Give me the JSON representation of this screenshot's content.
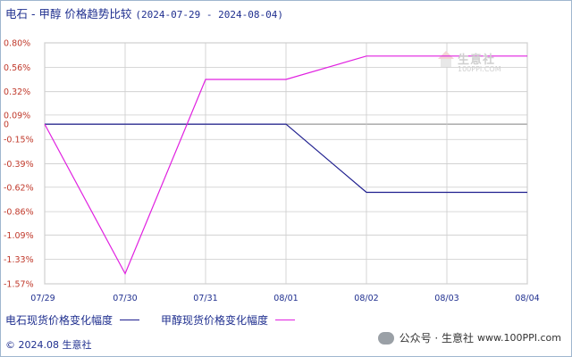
{
  "title": {
    "main": "电石 - 甲醇 价格趋势比较",
    "range": "(2024-07-29 - 2024-08-04)"
  },
  "watermark": {
    "name": "生意社",
    "url": "100PPI.COM"
  },
  "chart_data": {
    "type": "line",
    "categories": [
      "07/29",
      "07/30",
      "07/31",
      "08/01",
      "08/02",
      "08/03",
      "08/04"
    ],
    "y_ticks": [
      "0.80%",
      "0.56%",
      "0.32%",
      "0.09%",
      "0",
      "-0.15%",
      "-0.39%",
      "-0.62%",
      "-0.86%",
      "-1.09%",
      "-1.33%",
      "-1.57%"
    ],
    "y_tick_values": [
      0.8,
      0.56,
      0.32,
      0.09,
      0,
      -0.15,
      -0.39,
      -0.62,
      -0.86,
      -1.09,
      -1.33,
      -1.57
    ],
    "ylim": [
      -1.57,
      0.8
    ],
    "grid": true,
    "legend_position": "bottom-left",
    "series": [
      {
        "name": "电石现货价格变化幅度",
        "color": "#1f1f8f",
        "points": [
          [
            0,
            0
          ],
          [
            1,
            0
          ],
          [
            2,
            0
          ],
          [
            3,
            0
          ],
          [
            4,
            -0.67
          ],
          [
            6,
            -0.67
          ]
        ]
      },
      {
        "name": "甲醇现货价格变化幅度",
        "color": "#e020e0",
        "points": [
          [
            0,
            0
          ],
          [
            1,
            -1.47
          ],
          [
            2,
            0.44
          ],
          [
            3,
            0.44
          ],
          [
            4,
            0.67
          ],
          [
            6,
            0.67
          ]
        ]
      }
    ]
  },
  "footer": {
    "copyright": "© 2024.08 生意社",
    "wechat": "公众号 · 生意社",
    "site": "www.100PPI.com"
  },
  "colors": {
    "axis_label": "#c0392b",
    "text": "#1f2f8f",
    "grid": "#cccccc",
    "zero_line": "#999999"
  }
}
